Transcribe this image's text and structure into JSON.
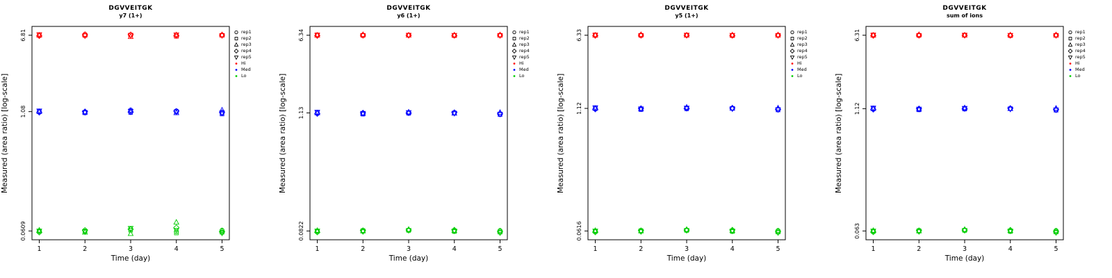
{
  "figure": {
    "xlabel": "Time (day)",
    "ylabel": "Measured (area ratio) [log-scale]",
    "x_ticks": [
      "1",
      "2",
      "3",
      "4",
      "5"
    ],
    "colors": {
      "hi": "#FF0000",
      "med": "#0000FF",
      "lo": "#00CD00",
      "axis": "#000000"
    },
    "legend": {
      "reps": [
        {
          "label": "rep1",
          "symbol": "circle"
        },
        {
          "label": "rep2",
          "symbol": "square"
        },
        {
          "label": "rep3",
          "symbol": "triangle-up"
        },
        {
          "label": "rep4",
          "symbol": "diamond"
        },
        {
          "label": "rep5",
          "symbol": "triangle-down"
        }
      ],
      "levels": [
        {
          "label": "Hi",
          "color": "#FF0000"
        },
        {
          "label": "Med",
          "color": "#0000FF"
        },
        {
          "label": "Lo",
          "color": "#00CD00"
        }
      ]
    }
  },
  "chart_data": [
    {
      "type": "scatter",
      "title": "DGVVEITGK",
      "subtitle": "y7 (1+)",
      "xlabel": "Time (day)",
      "ylabel": "Measured (area ratio) [log-scale]",
      "y_scale": "log10",
      "x": [
        1,
        2,
        3,
        4,
        5
      ],
      "x_range": [
        1,
        5
      ],
      "y_ticks": [
        6.81,
        1.08,
        0.0609
      ],
      "y_tick_labels": [
        "6.81",
        "1.08",
        "0.0609"
      ],
      "series": [
        {
          "name": "Hi",
          "color": "#FF0000",
          "reps": [
            [
              6.74,
              6.95,
              6.78,
              6.8,
              6.85
            ],
            [
              6.88,
              6.76,
              6.83,
              6.62,
              6.79
            ],
            [
              6.8,
              6.93,
              6.58,
              6.86,
              6.88
            ],
            [
              6.7,
              6.86,
              6.9,
              6.76,
              6.82
            ],
            [
              6.92,
              6.71,
              6.8,
              6.88,
              6.76
            ]
          ]
        },
        {
          "name": "Med",
          "color": "#0000FF",
          "reps": [
            [
              1.07,
              1.06,
              1.12,
              1.1,
              1.04
            ],
            [
              1.09,
              1.05,
              1.06,
              1.08,
              1.02
            ],
            [
              1.08,
              1.07,
              1.11,
              1.05,
              1.12
            ],
            [
              1.06,
              1.08,
              1.07,
              1.09,
              1.06
            ],
            [
              1.1,
              1.06,
              1.09,
              1.07,
              1.05
            ]
          ]
        },
        {
          "name": "Lo",
          "color": "#00CD00",
          "reps": [
            [
              0.061,
              0.06,
              0.064,
              0.06,
              0.062
            ],
            [
              0.06,
              0.061,
              0.062,
              0.058,
              0.059
            ],
            [
              0.062,
              0.059,
              0.057,
              0.075,
              0.061
            ],
            [
              0.059,
              0.062,
              0.0635,
              0.066,
              0.06
            ],
            [
              0.061,
              0.06,
              0.065,
              0.062,
              0.058
            ]
          ]
        }
      ]
    },
    {
      "type": "scatter",
      "title": "DGVVEITGK",
      "subtitle": "y6 (1+)",
      "xlabel": "Time (day)",
      "ylabel": "Measured (area ratio) [log-scale]",
      "y_scale": "log10",
      "x": [
        1,
        2,
        3,
        4,
        5
      ],
      "x_range": [
        1,
        5
      ],
      "y_ticks": [
        6.34,
        1.13,
        0.0822
      ],
      "y_tick_labels": [
        "6.34",
        "1.13",
        "0.0822"
      ],
      "series": [
        {
          "name": "Hi",
          "color": "#FF0000",
          "reps": [
            [
              6.3,
              6.38,
              6.33,
              6.31,
              6.36
            ],
            [
              6.4,
              6.3,
              6.36,
              6.28,
              6.32
            ],
            [
              6.33,
              6.42,
              6.35,
              6.36,
              6.38
            ],
            [
              6.28,
              6.35,
              6.32,
              6.3,
              6.34
            ],
            [
              6.36,
              6.31,
              6.34,
              6.33,
              6.3
            ]
          ]
        },
        {
          "name": "Med",
          "color": "#0000FF",
          "reps": [
            [
              1.12,
              1.11,
              1.14,
              1.13,
              1.1
            ],
            [
              1.14,
              1.1,
              1.12,
              1.13,
              1.09
            ],
            [
              1.13,
              1.12,
              1.15,
              1.12,
              1.14
            ],
            [
              1.11,
              1.13,
              1.13,
              1.14,
              1.11
            ],
            [
              1.15,
              1.12,
              1.14,
              1.12,
              1.1
            ]
          ]
        },
        {
          "name": "Lo",
          "color": "#00CD00",
          "reps": [
            [
              0.0822,
              0.0812,
              0.084,
              0.0822,
              0.083
            ],
            [
              0.0812,
              0.083,
              0.0832,
              0.0812,
              0.08
            ],
            [
              0.083,
              0.0822,
              0.085,
              0.083,
              0.0822
            ],
            [
              0.08,
              0.083,
              0.084,
              0.084,
              0.0812
            ],
            [
              0.0822,
              0.0812,
              0.0832,
              0.0822,
              0.079
            ]
          ]
        }
      ]
    },
    {
      "type": "scatter",
      "title": "DGVVEITGK",
      "subtitle": "y5 (1+)",
      "xlabel": "Time (day)",
      "ylabel": "Measured (area ratio) [log-scale]",
      "y_scale": "log10",
      "x": [
        1,
        2,
        3,
        4,
        5
      ],
      "x_range": [
        1,
        5
      ],
      "y_ticks": [
        6.33,
        1.12,
        0.0616
      ],
      "y_tick_labels": [
        "6.33",
        "1.12",
        "0.0616"
      ],
      "series": [
        {
          "name": "Hi",
          "color": "#FF0000",
          "reps": [
            [
              6.29,
              6.37,
              6.33,
              6.3,
              6.35
            ],
            [
              6.39,
              6.29,
              6.35,
              6.27,
              6.31
            ],
            [
              6.33,
              6.41,
              6.34,
              6.36,
              6.37
            ],
            [
              6.27,
              6.34,
              6.31,
              6.29,
              6.33
            ],
            [
              6.35,
              6.3,
              6.34,
              6.32,
              6.29
            ]
          ]
        },
        {
          "name": "Med",
          "color": "#0000FF",
          "reps": [
            [
              1.11,
              1.1,
              1.13,
              1.12,
              1.09
            ],
            [
              1.13,
              1.09,
              1.11,
              1.12,
              1.08
            ],
            [
              1.12,
              1.11,
              1.15,
              1.13,
              1.13
            ],
            [
              1.1,
              1.12,
              1.12,
              1.13,
              1.1
            ],
            [
              1.14,
              1.11,
              1.13,
              1.11,
              1.09
            ]
          ]
        },
        {
          "name": "Lo",
          "color": "#00CD00",
          "reps": [
            [
              0.0616,
              0.0608,
              0.063,
              0.0616,
              0.0622
            ],
            [
              0.0608,
              0.0622,
              0.0624,
              0.0608,
              0.06
            ],
            [
              0.0622,
              0.0616,
              0.0638,
              0.0622,
              0.0616
            ],
            [
              0.06,
              0.0622,
              0.063,
              0.063,
              0.0608
            ],
            [
              0.0616,
              0.0608,
              0.0624,
              0.0616,
              0.0592
            ]
          ]
        }
      ]
    },
    {
      "type": "scatter",
      "title": "DGVVEITGK",
      "subtitle": "sum of ions",
      "xlabel": "Time (day)",
      "ylabel": "Measured (area ratio) [log-scale]",
      "y_scale": "log10",
      "x": [
        1,
        2,
        3,
        4,
        5
      ],
      "x_range": [
        1,
        5
      ],
      "y_ticks": [
        6.31,
        1.12,
        0.063
      ],
      "y_tick_labels": [
        "6.31",
        "1.12",
        "0.063"
      ],
      "series": [
        {
          "name": "Hi",
          "color": "#FF0000",
          "reps": [
            [
              6.27,
              6.35,
              6.31,
              6.28,
              6.33
            ],
            [
              6.37,
              6.27,
              6.33,
              6.25,
              6.29
            ],
            [
              6.31,
              6.39,
              6.32,
              6.34,
              6.35
            ],
            [
              6.25,
              6.32,
              6.29,
              6.27,
              6.31
            ],
            [
              6.33,
              6.28,
              6.32,
              6.3,
              6.27
            ]
          ]
        },
        {
          "name": "Med",
          "color": "#0000FF",
          "reps": [
            [
              1.11,
              1.1,
              1.13,
              1.12,
              1.09
            ],
            [
              1.13,
              1.09,
              1.11,
              1.12,
              1.08
            ],
            [
              1.12,
              1.11,
              1.14,
              1.12,
              1.13
            ],
            [
              1.1,
              1.12,
              1.12,
              1.13,
              1.1
            ],
            [
              1.14,
              1.11,
              1.13,
              1.11,
              1.09
            ]
          ]
        },
        {
          "name": "Lo",
          "color": "#00CD00",
          "reps": [
            [
              0.063,
              0.0622,
              0.0644,
              0.063,
              0.0636
            ],
            [
              0.0622,
              0.0636,
              0.0638,
              0.0622,
              0.0614
            ],
            [
              0.0636,
              0.063,
              0.0652,
              0.0636,
              0.063
            ],
            [
              0.0614,
              0.0636,
              0.0644,
              0.0644,
              0.0622
            ],
            [
              0.063,
              0.0622,
              0.0638,
              0.063,
              0.0606
            ]
          ]
        }
      ]
    }
  ]
}
